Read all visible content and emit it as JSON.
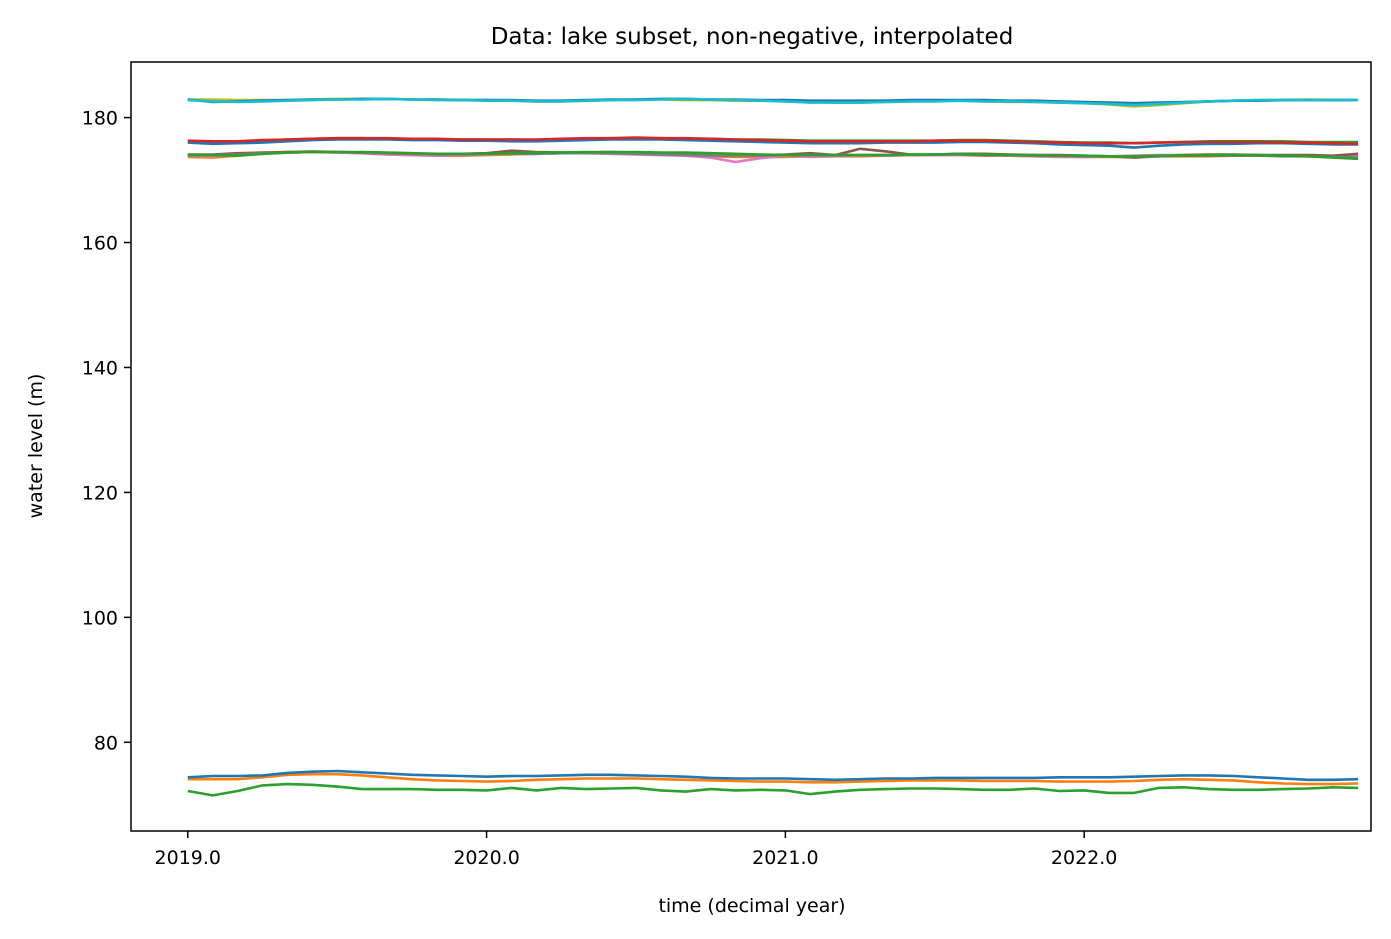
{
  "chart_data": {
    "type": "line",
    "title": "Data: lake subset, non-negative, interpolated",
    "xlabel": "time (decimal year)",
    "ylabel": "water level (m)",
    "xlim": [
      2018.81,
      2022.96
    ],
    "ylim": [
      65.8,
      188.9
    ],
    "xticks": [
      2019.0,
      2020.0,
      2021.0,
      2022.0
    ],
    "xtick_labels": [
      "2019.0",
      "2020.0",
      "2021.0",
      "2022.0"
    ],
    "yticks": [
      80,
      100,
      120,
      140,
      160,
      180
    ],
    "ytick_labels": [
      "80",
      "100",
      "120",
      "140",
      "160",
      "180"
    ],
    "grid": false,
    "legend": "none",
    "x": [
      2019.0,
      2019.0833,
      2019.1667,
      2019.25,
      2019.3333,
      2019.4167,
      2019.5,
      2019.5833,
      2019.6667,
      2019.75,
      2019.8333,
      2019.9167,
      2020.0,
      2020.0833,
      2020.1667,
      2020.25,
      2020.3333,
      2020.4167,
      2020.5,
      2020.5833,
      2020.6667,
      2020.75,
      2020.8333,
      2020.9167,
      2021.0,
      2021.0833,
      2021.1667,
      2021.25,
      2021.3333,
      2021.4167,
      2021.5,
      2021.5833,
      2021.6667,
      2021.75,
      2021.8333,
      2021.9167,
      2022.0,
      2022.0833,
      2022.1667,
      2022.25,
      2022.3333,
      2022.4167,
      2022.5,
      2022.5833,
      2022.6667,
      2022.75,
      2022.8333,
      2022.9167
    ],
    "series": [
      {
        "color": "#bcbd22",
        "values": [
          182.9,
          182.9,
          182.8,
          182.8,
          182.8,
          182.9,
          183.0,
          183.0,
          183.0,
          182.9,
          182.9,
          182.8,
          182.8,
          182.7,
          182.6,
          182.6,
          182.7,
          182.8,
          182.9,
          182.9,
          182.8,
          182.8,
          182.7,
          182.7,
          182.6,
          182.5,
          182.4,
          182.4,
          182.5,
          182.6,
          182.7,
          182.7,
          182.6,
          182.5,
          182.5,
          182.4,
          182.3,
          182.1,
          181.8,
          182.0,
          182.3,
          182.6,
          182.7,
          182.8,
          182.8,
          182.9,
          182.8,
          182.8
        ]
      },
      {
        "color": "#1f77b4",
        "values": [
          182.9,
          182.5,
          182.6,
          182.7,
          182.8,
          182.9,
          182.9,
          183.0,
          183.0,
          182.9,
          182.9,
          182.8,
          182.8,
          182.8,
          182.7,
          182.7,
          182.8,
          182.9,
          182.9,
          183.0,
          183.0,
          182.9,
          182.9,
          182.8,
          182.8,
          182.7,
          182.7,
          182.7,
          182.7,
          182.8,
          182.8,
          182.8,
          182.8,
          182.7,
          182.7,
          182.6,
          182.5,
          182.4,
          182.3,
          182.4,
          182.5,
          182.6,
          182.7,
          182.7,
          182.8,
          182.8,
          182.8,
          182.8
        ]
      },
      {
        "color": "#17becf",
        "values": [
          182.8,
          182.6,
          182.5,
          182.6,
          182.7,
          182.8,
          182.9,
          182.9,
          183.0,
          182.9,
          182.8,
          182.8,
          182.7,
          182.7,
          182.6,
          182.6,
          182.7,
          182.8,
          182.8,
          182.9,
          183.0,
          182.9,
          182.8,
          182.7,
          182.6,
          182.4,
          182.4,
          182.4,
          182.5,
          182.6,
          182.6,
          182.7,
          182.6,
          182.6,
          182.5,
          182.4,
          182.3,
          182.2,
          182.0,
          182.2,
          182.4,
          182.6,
          182.7,
          182.8,
          182.8,
          182.8,
          182.8,
          182.8
        ]
      },
      {
        "color": "#2ca02c",
        "values": [
          176.1,
          176.0,
          176.1,
          176.3,
          176.5,
          176.6,
          176.7,
          176.7,
          176.6,
          176.6,
          176.5,
          176.5,
          176.5,
          176.5,
          176.4,
          176.5,
          176.6,
          176.7,
          176.7,
          176.7,
          176.6,
          176.6,
          176.5,
          176.5,
          176.4,
          176.3,
          176.3,
          176.3,
          176.3,
          176.3,
          176.3,
          176.4,
          176.4,
          176.3,
          176.2,
          176.1,
          176.0,
          176.0,
          175.9,
          176.0,
          176.1,
          176.2,
          176.2,
          176.2,
          176.2,
          176.1,
          176.1,
          176.1
        ]
      },
      {
        "color": "#1f77b4",
        "values": [
          176.0,
          175.8,
          175.9,
          176.0,
          176.2,
          176.4,
          176.5,
          176.5,
          176.5,
          176.4,
          176.4,
          176.3,
          176.3,
          176.2,
          176.2,
          176.3,
          176.4,
          176.5,
          176.5,
          176.5,
          176.4,
          176.3,
          176.2,
          176.1,
          176.0,
          175.9,
          175.9,
          175.9,
          176.0,
          176.0,
          176.0,
          176.1,
          176.1,
          176.0,
          175.9,
          175.7,
          175.6,
          175.5,
          175.2,
          175.5,
          175.7,
          175.8,
          175.8,
          175.9,
          175.9,
          175.8,
          175.7,
          175.7
        ]
      },
      {
        "color": "#d62728",
        "values": [
          176.3,
          176.2,
          176.2,
          176.4,
          176.5,
          176.6,
          176.7,
          176.7,
          176.7,
          176.6,
          176.6,
          176.5,
          176.5,
          176.5,
          176.5,
          176.6,
          176.7,
          176.7,
          176.8,
          176.7,
          176.7,
          176.6,
          176.5,
          176.4,
          176.3,
          176.2,
          176.2,
          176.2,
          176.2,
          176.2,
          176.3,
          176.3,
          176.3,
          176.2,
          176.1,
          176.0,
          175.9,
          175.9,
          175.9,
          176.0,
          176.1,
          176.1,
          176.1,
          176.1,
          176.0,
          176.0,
          175.9,
          175.8
        ]
      },
      {
        "color": "#ff7f0e",
        "values": [
          173.7,
          173.6,
          173.9,
          174.2,
          174.5,
          174.6,
          174.5,
          174.3,
          174.1,
          174.0,
          173.9,
          173.9,
          174.0,
          174.1,
          174.2,
          174.3,
          174.3,
          174.3,
          174.2,
          174.1,
          173.9,
          173.8,
          173.7,
          173.7,
          173.7,
          173.8,
          173.8,
          173.8,
          173.9,
          174.0,
          174.0,
          174.0,
          173.9,
          173.9,
          173.8,
          173.8,
          173.7,
          173.7,
          173.7,
          173.8,
          173.8,
          173.8,
          173.9,
          173.9,
          173.9,
          173.8,
          173.8,
          173.7
        ]
      },
      {
        "color": "#e377c2",
        "values": [
          173.9,
          173.8,
          174.0,
          174.2,
          174.4,
          174.5,
          174.4,
          174.3,
          174.1,
          174.0,
          173.9,
          174.0,
          174.1,
          174.2,
          174.2,
          174.3,
          174.3,
          174.2,
          174.1,
          174.0,
          173.9,
          173.6,
          172.9,
          173.5,
          173.9,
          173.7,
          173.8,
          173.9,
          173.9,
          174.0,
          174.0,
          174.0,
          174.0,
          173.9,
          173.8,
          173.7,
          173.7,
          173.8,
          173.9,
          174.0,
          174.0,
          174.0,
          174.0,
          173.9,
          173.9,
          173.9,
          173.8,
          173.9
        ]
      },
      {
        "color": "#8c564b",
        "values": [
          174.1,
          174.1,
          174.3,
          174.4,
          174.5,
          174.5,
          174.5,
          174.4,
          174.3,
          174.2,
          174.2,
          174.2,
          174.3,
          174.7,
          174.5,
          174.4,
          174.4,
          174.5,
          174.4,
          174.3,
          174.2,
          174.1,
          174.0,
          174.0,
          174.1,
          174.3,
          174.0,
          175.0,
          174.6,
          174.1,
          174.1,
          174.2,
          174.2,
          174.1,
          174.0,
          174.0,
          173.9,
          173.8,
          173.6,
          173.8,
          174.0,
          174.1,
          174.1,
          174.0,
          174.0,
          174.0,
          173.9,
          174.2
        ]
      },
      {
        "color": "#7f7f7f",
        "values": [
          174.0,
          174.0,
          174.1,
          174.3,
          174.4,
          174.5,
          174.5,
          174.4,
          174.3,
          174.2,
          174.1,
          174.1,
          174.2,
          174.2,
          174.2,
          174.3,
          174.3,
          174.3,
          174.2,
          174.1,
          174.0,
          173.9,
          173.9,
          173.9,
          174.0,
          174.0,
          174.0,
          174.0,
          174.0,
          174.0,
          174.1,
          174.1,
          174.0,
          174.0,
          173.9,
          173.9,
          173.8,
          173.8,
          173.8,
          173.8,
          173.9,
          173.9,
          173.9,
          173.9,
          173.8,
          173.8,
          173.7,
          173.6
        ]
      },
      {
        "color": "#2ca02c",
        "values": [
          174.0,
          174.0,
          173.9,
          174.2,
          174.4,
          174.5,
          174.5,
          174.5,
          174.4,
          174.3,
          174.2,
          174.2,
          174.2,
          174.3,
          174.4,
          174.4,
          174.5,
          174.5,
          174.5,
          174.4,
          174.4,
          174.3,
          174.2,
          174.1,
          174.0,
          174.0,
          174.0,
          174.0,
          174.0,
          174.1,
          174.1,
          174.2,
          174.1,
          174.0,
          174.0,
          173.9,
          173.9,
          173.8,
          173.8,
          173.9,
          173.9,
          174.0,
          174.0,
          174.0,
          173.9,
          173.8,
          173.6,
          173.4
        ]
      },
      {
        "color": "#ff7f0e",
        "values": [
          74.1,
          74.1,
          74.1,
          74.4,
          74.8,
          74.9,
          74.9,
          74.7,
          74.4,
          74.1,
          73.9,
          73.8,
          73.7,
          73.8,
          74.0,
          74.1,
          74.2,
          74.2,
          74.2,
          74.1,
          74.0,
          73.9,
          73.8,
          73.7,
          73.7,
          73.6,
          73.6,
          73.7,
          73.8,
          73.9,
          73.9,
          73.9,
          73.8,
          73.8,
          73.8,
          73.7,
          73.7,
          73.7,
          73.8,
          74.0,
          74.1,
          74.0,
          73.9,
          73.6,
          73.4,
          73.3,
          73.3,
          73.4
        ]
      },
      {
        "color": "#1f77b4",
        "values": [
          74.4,
          74.6,
          74.6,
          74.7,
          75.1,
          75.3,
          75.4,
          75.2,
          75.0,
          74.8,
          74.7,
          74.6,
          74.5,
          74.6,
          74.6,
          74.7,
          74.8,
          74.8,
          74.7,
          74.6,
          74.5,
          74.3,
          74.2,
          74.2,
          74.2,
          74.1,
          74.0,
          74.1,
          74.2,
          74.2,
          74.3,
          74.3,
          74.3,
          74.3,
          74.3,
          74.4,
          74.4,
          74.4,
          74.5,
          74.6,
          74.7,
          74.7,
          74.6,
          74.4,
          74.2,
          74.0,
          74.0,
          74.1
        ]
      },
      {
        "color": "#2ca02c",
        "values": [
          72.2,
          71.5,
          72.2,
          73.1,
          73.3,
          73.2,
          72.9,
          72.5,
          72.5,
          72.5,
          72.4,
          72.4,
          72.3,
          72.7,
          72.3,
          72.7,
          72.5,
          72.6,
          72.7,
          72.3,
          72.1,
          72.5,
          72.3,
          72.4,
          72.3,
          71.7,
          72.1,
          72.4,
          72.5,
          72.6,
          72.6,
          72.5,
          72.4,
          72.4,
          72.6,
          72.2,
          72.3,
          71.9,
          71.9,
          72.7,
          72.8,
          72.5,
          72.4,
          72.4,
          72.5,
          72.6,
          72.8,
          72.7
        ]
      }
    ]
  }
}
